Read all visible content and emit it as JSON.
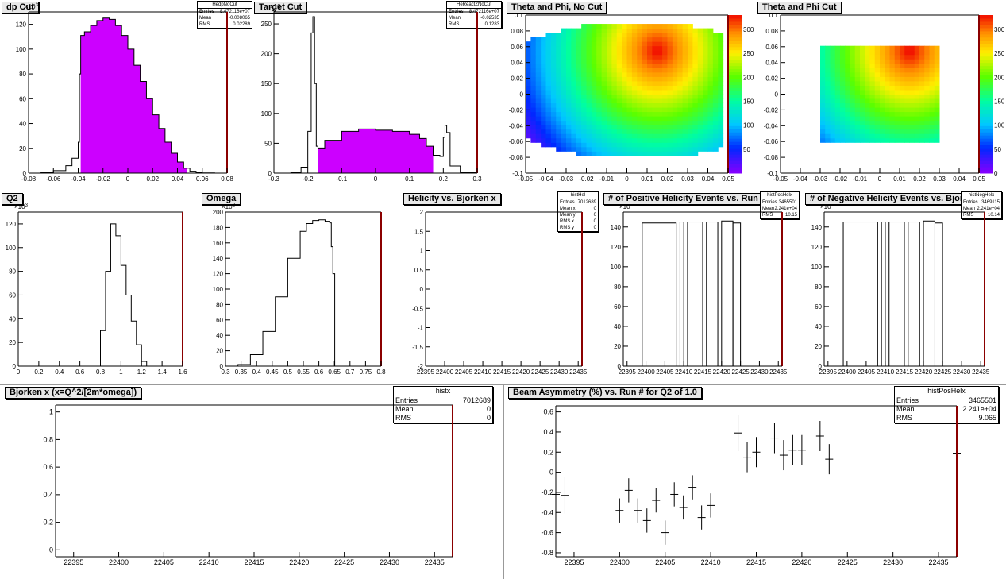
{
  "colors": {
    "fill": "#cc00ff",
    "axis": "#000000",
    "frame_right": "#8b0000",
    "title_bg": "#e8e8e8"
  },
  "pads": [
    {
      "id": "dp",
      "title": "dp Cut",
      "multiplier": "×10",
      "multiplier_sup": "3",
      "stats": {
        "name": "HedpNoCut",
        "rows": [
          [
            "Entries",
            "8.472116e+07"
          ],
          [
            "Mean",
            "-0.008065"
          ],
          [
            "RMS",
            "0.02289"
          ]
        ]
      }
    },
    {
      "id": "tgt",
      "title": "Target Cut",
      "multiplier": "×10",
      "multiplier_sup": "",
      "stats": {
        "name": "HeReactZNoCut",
        "rows": [
          [
            "Entries",
            "8.472116e+07"
          ],
          [
            "Mean",
            "-0.02535"
          ],
          [
            "RMS",
            "0.1283"
          ]
        ]
      }
    },
    {
      "id": "thphi",
      "title": "Theta and Phi, No Cut"
    },
    {
      "id": "thphicut",
      "title": "Theta and Phi Cut"
    },
    {
      "id": "q2",
      "title": "Q2",
      "multiplier": "×10",
      "multiplier_sup": "3"
    },
    {
      "id": "omega",
      "title": "Omega",
      "multiplier": "×10",
      "multiplier_sup": "3"
    },
    {
      "id": "hel",
      "title": "Helicity vs. Bjorken x",
      "stats": {
        "name": "histHel",
        "rows": [
          [
            "Entries",
            "7012689"
          ],
          [
            "Mean x",
            "0"
          ],
          [
            "Mean y",
            "0"
          ],
          [
            "RMS x",
            "0"
          ],
          [
            "RMS y",
            "0"
          ]
        ]
      }
    },
    {
      "id": "pos",
      "title": "# of Positive Helicity Events vs. Run #",
      "multiplier": "×10",
      "multiplier_sup": "",
      "stats": {
        "name": "histPosHelx",
        "rows": [
          [
            "Entries",
            "3465501"
          ],
          [
            "Mean",
            "2.241e+04"
          ],
          [
            "RMS",
            "10.15"
          ]
        ]
      }
    },
    {
      "id": "neg",
      "title": "# of Negative Helicity Events vs. Bjorken x",
      "multiplier": "×10",
      "multiplier_sup": "",
      "stats": {
        "name": "histNegHelx",
        "rows": [
          [
            "Entries",
            "3469115"
          ],
          [
            "Mean",
            "2.241e+04"
          ],
          [
            "RMS",
            "10.14"
          ]
        ]
      }
    },
    {
      "id": "bj",
      "title": "Bjorken x  (x=Q^2/[2m*omega])",
      "stats": {
        "name": "histx",
        "rows": [
          [
            "Entries",
            "7012689"
          ],
          [
            "Mean",
            "0"
          ],
          [
            "RMS",
            "0"
          ]
        ]
      }
    },
    {
      "id": "asym",
      "title": "Beam Asymmetry (%) vs. Run # for Q2 of 1.0",
      "stats": {
        "name": "histPosHelx",
        "rows": [
          [
            "Entries",
            "3465501"
          ],
          [
            "Mean",
            "2.241e+04"
          ],
          [
            "RMS",
            "9.065"
          ]
        ]
      }
    }
  ],
  "chart_data": [
    {
      "id": "dp",
      "type": "histogram",
      "xlim": [
        -0.08,
        0.08
      ],
      "ylim": [
        0,
        130
      ],
      "xticks": [
        "-0.08",
        "-0.06",
        "-0.04",
        "-0.02",
        "0",
        "0.02",
        "0.04",
        "0.06",
        "0.08"
      ],
      "yticks": [
        "0",
        "20",
        "40",
        "60",
        "80",
        "100",
        "120"
      ],
      "fill_range": [
        -0.038,
        0.048
      ],
      "x": [
        -0.08,
        -0.07,
        -0.06,
        -0.05,
        -0.045,
        -0.04,
        -0.039,
        -0.038,
        -0.035,
        -0.03,
        -0.025,
        -0.02,
        -0.015,
        -0.01,
        -0.005,
        0,
        0.005,
        0.01,
        0.015,
        0.02,
        0.025,
        0.03,
        0.035,
        0.04,
        0.045,
        0.05,
        0.055,
        0.06,
        0.07,
        0.08
      ],
      "values": [
        0,
        0.5,
        2,
        6,
        12,
        25,
        80,
        111,
        114,
        119,
        123,
        125,
        124,
        119,
        111,
        100,
        87,
        74,
        60,
        47,
        36,
        25,
        16,
        9,
        4,
        1.5,
        0.5,
        0.2,
        0,
        0
      ]
    },
    {
      "id": "tgt",
      "type": "histogram",
      "xlim": [
        -0.3,
        0.3
      ],
      "ylim": [
        0,
        270
      ],
      "xticks": [
        "-0.3",
        "-0.2",
        "-0.1",
        "0",
        "0.1",
        "0.2",
        "0.3"
      ],
      "yticks": [
        "0",
        "50",
        "100",
        "150",
        "200",
        "250"
      ],
      "fill_range": [
        -0.17,
        0.17
      ],
      "x": [
        -0.3,
        -0.25,
        -0.22,
        -0.2,
        -0.19,
        -0.185,
        -0.18,
        -0.175,
        -0.17,
        -0.15,
        -0.1,
        -0.05,
        -0.03,
        0,
        0.05,
        0.1,
        0.13,
        0.15,
        0.17,
        0.19,
        0.2,
        0.205,
        0.21,
        0.22,
        0.25,
        0.3
      ],
      "values": [
        0,
        1,
        10,
        70,
        235,
        262,
        150,
        45,
        42,
        55,
        70,
        74,
        74,
        72,
        70,
        65,
        58,
        45,
        30,
        28,
        60,
        80,
        68,
        12,
        1,
        0
      ]
    },
    {
      "id": "thphi",
      "type": "heatmap",
      "xlim": [
        -0.05,
        0.05
      ],
      "ylim": [
        -0.1,
        0.1
      ],
      "xticks": [
        "-0.05",
        "-0.04",
        "-0.03",
        "-0.02",
        "-0.01",
        "0",
        "0.01",
        "0.02",
        "0.03",
        "0.04",
        "0.05"
      ],
      "yticks": [
        "-0.1",
        "-0.08",
        "-0.06",
        "-0.04",
        "-0.02",
        "0",
        "0.02",
        "0.04",
        "0.06",
        "0.08",
        "0.1"
      ],
      "zticks": [
        "50",
        "100",
        "150",
        "200",
        "250",
        "300"
      ],
      "zlim": [
        0,
        330
      ]
    },
    {
      "id": "thphicut",
      "type": "heatmap",
      "xlim": [
        -0.05,
        0.05
      ],
      "ylim": [
        -0.1,
        0.1
      ],
      "xticks": [
        "-0.05",
        "-0.04",
        "-0.03",
        "-0.02",
        "-0.01",
        "0",
        "0.01",
        "0.02",
        "0.03",
        "0.04",
        "0.05"
      ],
      "yticks": [
        "-0.1",
        "-0.08",
        "-0.06",
        "-0.04",
        "-0.02",
        "0",
        "0.02",
        "0.04",
        "0.06",
        "0.08",
        "0.1"
      ],
      "zticks": [
        "0",
        "50",
        "100",
        "150",
        "200",
        "250",
        "300"
      ],
      "zlim": [
        0,
        330
      ]
    },
    {
      "id": "q2",
      "type": "histogram",
      "xlim": [
        0,
        1.6
      ],
      "ylim": [
        0,
        130
      ],
      "xticks": [
        "0",
        "0.2",
        "0.4",
        "0.6",
        "0.8",
        "1",
        "1.2",
        "1.4",
        "1.6"
      ],
      "yticks": [
        "0",
        "20",
        "40",
        "60",
        "80",
        "100",
        "120"
      ],
      "x": [
        0,
        0.75,
        0.8,
        0.85,
        0.9,
        0.95,
        1.0,
        1.05,
        1.1,
        1.15,
        1.2,
        1.25,
        1.6
      ],
      "values": [
        0,
        0,
        30,
        80,
        120,
        110,
        85,
        60,
        38,
        18,
        4,
        0,
        0
      ]
    },
    {
      "id": "omega",
      "type": "histogram",
      "xlim": [
        0.3,
        0.8
      ],
      "ylim": [
        0,
        200
      ],
      "xticks": [
        "0.3",
        "0.35",
        "0.4",
        "0.45",
        "0.5",
        "0.55",
        "0.6",
        "0.65",
        "0.7",
        "0.75",
        "0.8"
      ],
      "yticks": [
        "0",
        "20",
        "40",
        "60",
        "80",
        "100",
        "120",
        "140",
        "160",
        "180",
        "200"
      ],
      "x": [
        0.3,
        0.34,
        0.38,
        0.42,
        0.46,
        0.5,
        0.54,
        0.56,
        0.58,
        0.6,
        0.62,
        0.635,
        0.64,
        0.645,
        0.65,
        0.651,
        0.8
      ],
      "values": [
        0,
        2,
        15,
        45,
        90,
        140,
        175,
        185,
        189,
        190,
        188,
        186,
        155,
        120,
        120,
        0,
        0
      ]
    },
    {
      "id": "hel",
      "type": "scatter",
      "xlim": [
        22395,
        22436
      ],
      "ylim": [
        -2,
        2
      ],
      "xticks": [
        "22395",
        "22400",
        "22405",
        "22410",
        "22415",
        "22420",
        "22425",
        "22430",
        "22435"
      ],
      "yticks": [
        "-2",
        "-1.5",
        "-1",
        "-0.5",
        "0",
        "0.5",
        "1",
        "1.5",
        "2"
      ],
      "values": []
    },
    {
      "id": "pos",
      "type": "histogram",
      "xlim": [
        22394,
        22436
      ],
      "ylim": [
        0,
        155
      ],
      "xticks": [
        "22395",
        "22400",
        "22405",
        "22410",
        "22415",
        "22420",
        "22425",
        "22430",
        "22435"
      ],
      "yticks": [
        "0",
        "20",
        "40",
        "60",
        "80",
        "100",
        "120",
        "140"
      ],
      "bars": [
        [
          22399,
          22408,
          144
        ],
        [
          22409,
          22410,
          145
        ],
        [
          22411,
          22415,
          145
        ],
        [
          22416,
          22419,
          145
        ],
        [
          22420,
          22423,
          146
        ],
        [
          22423,
          22425,
          144
        ]
      ]
    },
    {
      "id": "neg",
      "type": "histogram",
      "xlim": [
        22394,
        22436
      ],
      "ylim": [
        0,
        155
      ],
      "xticks": [
        "22395",
        "22400",
        "22405",
        "22410",
        "22415",
        "22420",
        "22425",
        "22430",
        "22435"
      ],
      "yticks": [
        "0",
        "20",
        "40",
        "60",
        "80",
        "100",
        "120",
        "140"
      ],
      "bars": [
        [
          22399,
          22408,
          145
        ],
        [
          22409,
          22410,
          145
        ],
        [
          22411,
          22415,
          145
        ],
        [
          22416,
          22419,
          145
        ],
        [
          22420,
          22423,
          146
        ],
        [
          22423,
          22425,
          144
        ]
      ]
    },
    {
      "id": "bj",
      "type": "scatter",
      "xlim": [
        22393,
        22437
      ],
      "ylim": [
        -0.05,
        1.05
      ],
      "xticks": [
        "22395",
        "22400",
        "22405",
        "22410",
        "22415",
        "22420",
        "22425",
        "22430",
        "22435"
      ],
      "yticks": [
        "0",
        "0.2",
        "0.4",
        "0.6",
        "0.8",
        "1"
      ],
      "values": []
    },
    {
      "id": "asym",
      "type": "scatter",
      "xlim": [
        22393,
        22437
      ],
      "ylim": [
        -0.84,
        0.66
      ],
      "xticks": [
        "22395",
        "22400",
        "22405",
        "22410",
        "22415",
        "22420",
        "22425",
        "22430",
        "22435"
      ],
      "yticks": [
        "-0.8",
        "-0.6",
        "-0.4",
        "-0.2",
        "0",
        "0.2",
        "0.4",
        "0.6"
      ],
      "points": [
        [
          22393,
          -0.22,
          0.18
        ],
        [
          22394,
          -0.23,
          0.18
        ],
        [
          22400,
          -0.38,
          0.12
        ],
        [
          22401,
          -0.18,
          0.12
        ],
        [
          22402,
          -0.38,
          0.12
        ],
        [
          22403,
          -0.48,
          0.12
        ],
        [
          22404,
          -0.28,
          0.12
        ],
        [
          22405,
          -0.6,
          0.12
        ],
        [
          22406,
          -0.22,
          0.12
        ],
        [
          22407,
          -0.35,
          0.12
        ],
        [
          22408,
          -0.15,
          0.12
        ],
        [
          22409,
          -0.45,
          0.12
        ],
        [
          22410,
          -0.33,
          0.12
        ],
        [
          22413,
          0.39,
          0.18
        ],
        [
          22414,
          0.15,
          0.15
        ],
        [
          22415,
          0.2,
          0.15
        ],
        [
          22417,
          0.34,
          0.15
        ],
        [
          22418,
          0.17,
          0.15
        ],
        [
          22419,
          0.22,
          0.15
        ],
        [
          22420,
          0.22,
          0.15
        ],
        [
          22422,
          0.36,
          0.15
        ],
        [
          22423,
          0.13,
          0.15
        ],
        [
          22437,
          0.19,
          0.15
        ]
      ]
    }
  ]
}
